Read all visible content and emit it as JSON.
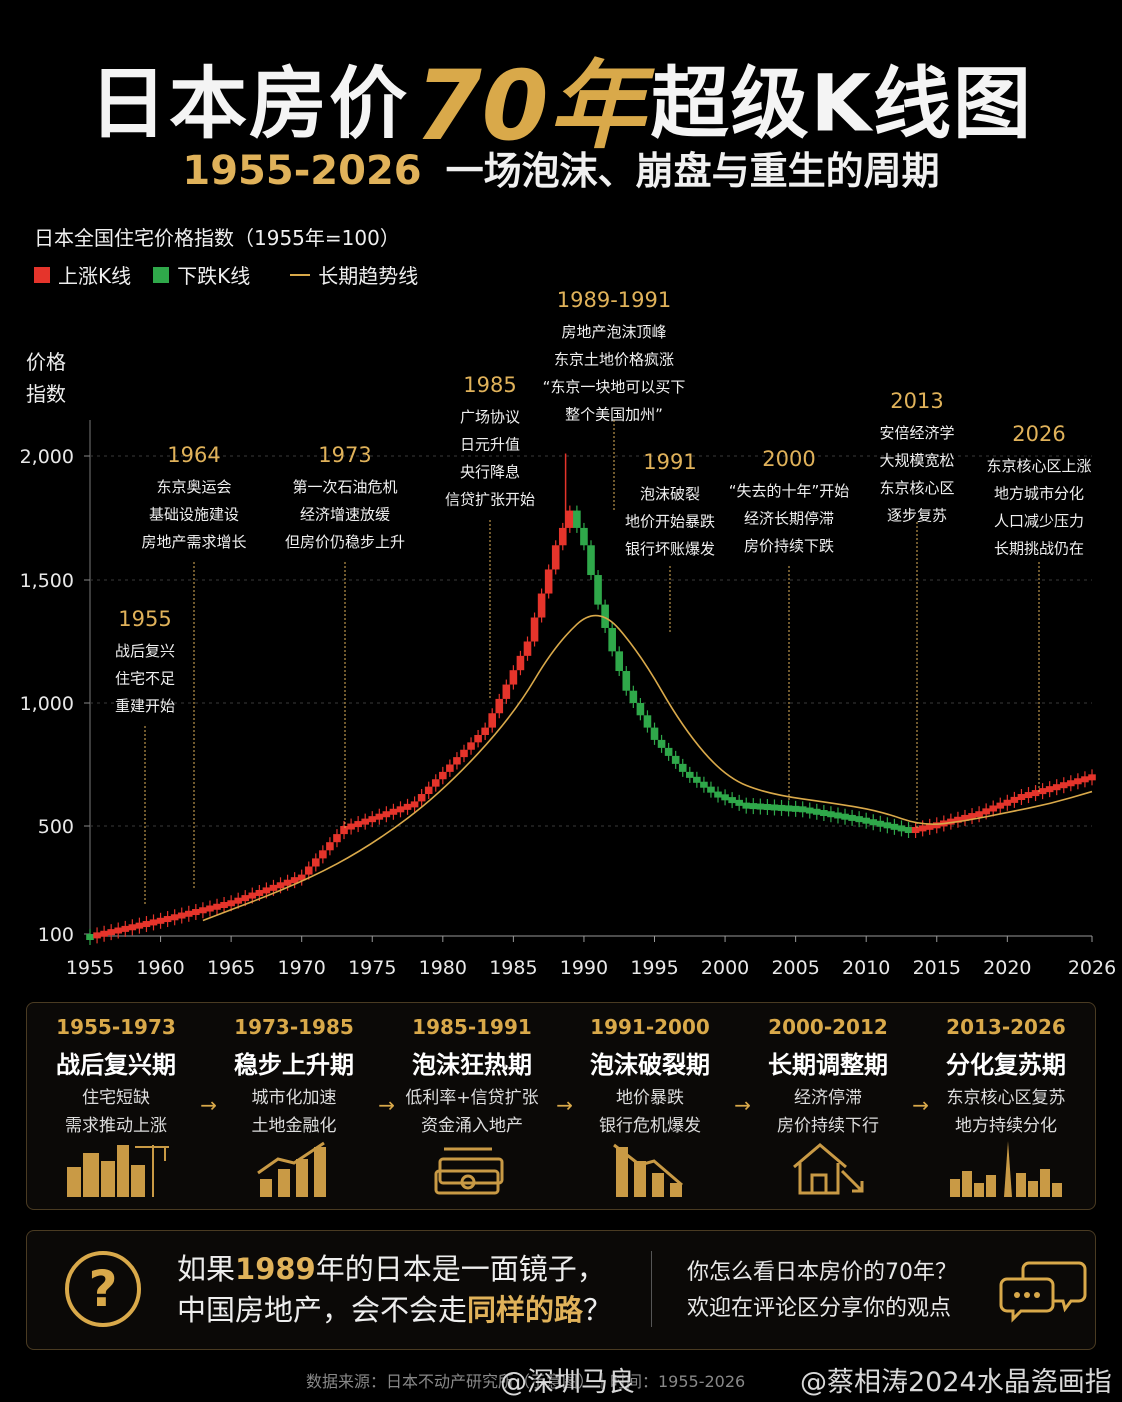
{
  "header": {
    "title_a": "日本房价",
    "title_b": "70年",
    "title_c": "超级K线图",
    "subtitle_years": "1955-2026",
    "subtitle_text": "一场泡沫、崩盘与重生的周期"
  },
  "legend": {
    "rise": "上涨K线",
    "fall": "下跌K线",
    "trend": "长期趋势线"
  },
  "colors": {
    "rise": "#e5342b",
    "fall": "#2fa84a",
    "trend": "#d9a94a",
    "gold": "#e0b25a"
  },
  "chart_data": {
    "type": "candlestick",
    "title": "日本全国住宅价格指数（1955年=100）",
    "ylabel": "价格指数",
    "ylim": [
      100,
      2200
    ],
    "y_ticks": [
      100,
      500,
      1000,
      1500,
      2000
    ],
    "y_tick_labels": [
      "100",
      "500",
      "1,000",
      "1,500",
      "2,000"
    ],
    "x_ticks": [
      1955,
      1960,
      1965,
      1970,
      1975,
      1980,
      1985,
      1990,
      1995,
      2000,
      2005,
      2010,
      2015,
      2020,
      2026
    ],
    "xlim": [
      1955,
      2026
    ],
    "grid": "horizontal-dashed",
    "price_anchors": [
      [
        1955,
        100
      ],
      [
        1960,
        160
      ],
      [
        1965,
        225
      ],
      [
        1970,
        320
      ],
      [
        1973,
        500
      ],
      [
        1978,
        600
      ],
      [
        1983,
        900
      ],
      [
        1986,
        1250
      ],
      [
        1988,
        1640
      ],
      [
        1989,
        1780
      ],
      [
        1990,
        1640
      ],
      [
        1991,
        1400
      ],
      [
        1992,
        1210
      ],
      [
        1993,
        1050
      ],
      [
        1995,
        850
      ],
      [
        1997,
        720
      ],
      [
        1999,
        640
      ],
      [
        2001,
        595
      ],
      [
        2005,
        580
      ],
      [
        2009,
        540
      ],
      [
        2013,
        490
      ],
      [
        2015,
        515
      ],
      [
        2018,
        560
      ],
      [
        2021,
        630
      ],
      [
        2026,
        710
      ]
    ],
    "trend_line": [
      [
        1963,
        150
      ],
      [
        1970,
        290
      ],
      [
        1975,
        430
      ],
      [
        1980,
        640
      ],
      [
        1985,
        950
      ],
      [
        1988,
        1240
      ],
      [
        1991,
        1400
      ],
      [
        1994,
        1200
      ],
      [
        1997,
        900
      ],
      [
        2000,
        700
      ],
      [
        2003,
        630
      ],
      [
        2008,
        590
      ],
      [
        2011,
        560
      ],
      [
        2014,
        500
      ],
      [
        2017,
        520
      ],
      [
        2020,
        555
      ],
      [
        2023,
        590
      ],
      [
        2026,
        640
      ]
    ],
    "spike": {
      "year": 1989,
      "high": 2010
    },
    "annotations": [
      {
        "year": "1955",
        "lines": [
          "战后复兴",
          "住宅不足",
          "重建开始"
        ],
        "at": 1958.9
      },
      {
        "year": "1964",
        "lines": [
          "东京奥运会",
          "基础设施建设",
          "房地产需求增长"
        ],
        "at": 1962.8
      },
      {
        "year": "1973",
        "lines": [
          "第一次石油危机",
          "经济增速放缓",
          "但房价仍稳步上升"
        ],
        "at": 1972.4
      },
      {
        "year": "1985",
        "lines": [
          "广场协议",
          "日元升值",
          "央行降息",
          "信贷扩张开始"
        ],
        "at": 1982.4
      },
      {
        "year": "1989-1991",
        "lines": [
          "房地产泡沫顶峰",
          "东京土地价格疯涨",
          "“东京一块地可以买下",
          "整个美国加州”"
        ],
        "at": 1989.0
      },
      {
        "year": "1991",
        "lines": [
          "泡沫破裂",
          "地价开始暴跌",
          "银行坏账爆发"
        ],
        "at": 1994.8
      },
      {
        "year": "2000",
        "lines": [
          "“失去的十年”开始",
          "经济长期停滞",
          "房价持续下跌"
        ],
        "at": 2003.0
      },
      {
        "year": "2013",
        "lines": [
          "安倍经济学",
          "大规模宽松",
          "东京核心区",
          "逐步复苏"
        ],
        "at": 2012.3
      },
      {
        "year": "2026",
        "lines": [
          "东京核心区上涨",
          "地方城市分化",
          "人口减少压力",
          "长期挑战仍在"
        ],
        "at": 2021.3
      }
    ]
  },
  "phases": [
    {
      "years": "1955-1973",
      "name": "战后复兴期",
      "desc": [
        "住宅短缺",
        "需求推动上涨"
      ],
      "icon": "city-crane-icon"
    },
    {
      "years": "1973-1985",
      "name": "稳步上升期",
      "desc": [
        "城市化加速",
        "土地金融化"
      ],
      "icon": "bar-chart-up-icon"
    },
    {
      "years": "1985-1991",
      "name": "泡沫狂热期",
      "desc": [
        "低利率+信贷扩张",
        "资金涌入地产"
      ],
      "icon": "money-stack-icon"
    },
    {
      "years": "1991-2000",
      "name": "泡沫破裂期",
      "desc": [
        "地价暴跌",
        "银行危机爆发"
      ],
      "icon": "bar-chart-down-icon"
    },
    {
      "years": "2000-2012",
      "name": "长期调整期",
      "desc": [
        "经济停滞",
        "房价持续下行"
      ],
      "icon": "house-down-icon"
    },
    {
      "years": "2013-2026",
      "name": "分化复苏期",
      "desc": [
        "东京核心区复苏",
        "地方持续分化"
      ],
      "icon": "tokyo-skyline-icon"
    }
  ],
  "question": {
    "line1_a": "如果",
    "line1_hl": "1989",
    "line1_b": "年的日本是一面镜子，",
    "line2_a": "中国房地产，会不会走",
    "line2_hl": "同样的路",
    "line2_b": "？"
  },
  "comment": {
    "line1": "你怎么看日本房价的70年？",
    "line2": "欢迎在评论区分享你的观点"
  },
  "source": "数据来源：日本不动产研究所（示意图）｜时间：1955-2026",
  "watermarks": [
    "@深圳马良",
    "@蔡相涛2024水晶瓷画指"
  ]
}
